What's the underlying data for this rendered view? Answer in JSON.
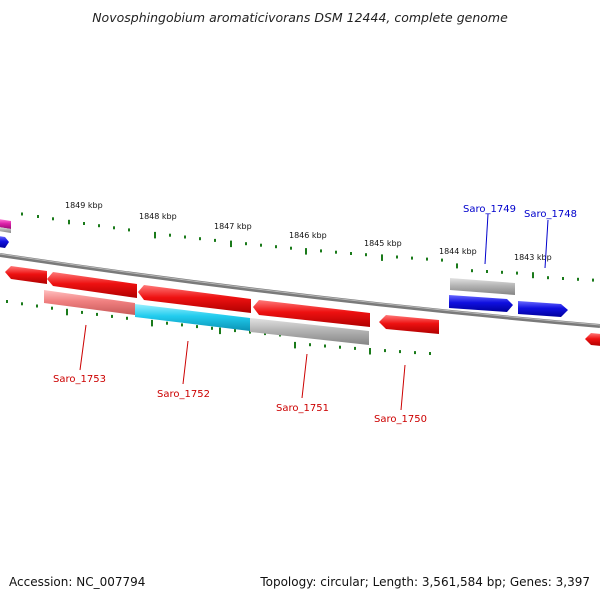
{
  "title": "Novosphingobium aromaticivorans DSM 12444, complete genome",
  "footer": {
    "accession_label": "Accession:",
    "accession_value": "NC_007794",
    "topology_label": "Topology:",
    "topology_value": "circular",
    "length_label": "Length:",
    "length_value": "3,561,584 bp",
    "genes_label": "Genes:",
    "genes_value": "3,397"
  },
  "colors": {
    "backbone": "#808080",
    "tick": "#1a7a1a",
    "forward_label": "#0000cc",
    "reverse_label": "#cc0000",
    "red_gene": "#ee1111",
    "blue_gene": "#1010e0",
    "grey_gene": "#b0b0b0",
    "pink_gene": "#f08080",
    "cyan_gene": "#22ccee",
    "magenta_gene": "#dd22aa"
  },
  "scale_labels": [
    "1849 kbp",
    "1848 kbp",
    "1847 kbp",
    "1846 kbp",
    "1845 kbp",
    "1844 kbp",
    "1843 kbp"
  ],
  "gene_labels": {
    "saro_1749": "Saro_1749",
    "saro_1748": "Saro_1748",
    "saro_1753": "Saro_1753",
    "saro_1752": "Saro_1752",
    "saro_1751": "Saro_1751",
    "saro_1750": "Saro_1750"
  }
}
